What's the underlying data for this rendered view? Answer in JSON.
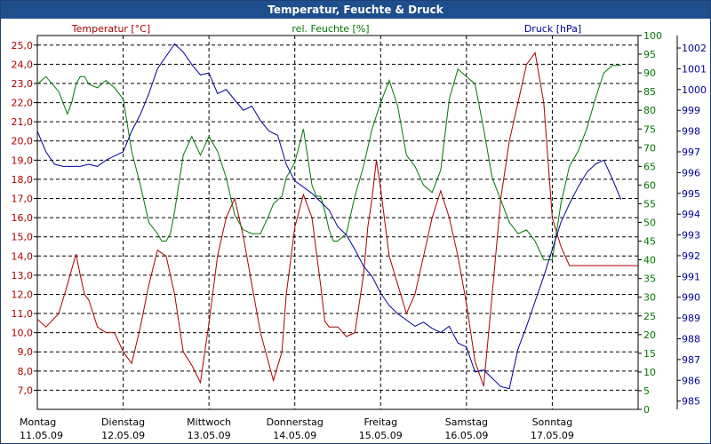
{
  "window": {
    "title": "Temperatur, Feuchte & Druck"
  },
  "chart_data": {
    "type": "line",
    "title": "Temperatur, Feuchte & Druck",
    "x_days": [
      {
        "day": "Montag",
        "date": "11.05.09"
      },
      {
        "day": "Dienstag",
        "date": "12.05.09"
      },
      {
        "day": "Mittwoch",
        "date": "13.05.09"
      },
      {
        "day": "Donnerstag",
        "date": "14.05.09"
      },
      {
        "day": "Freitag",
        "date": "15.05.09"
      },
      {
        "day": "Samstag",
        "date": "16.05.09"
      },
      {
        "day": "Sonntag",
        "date": "17.05.09"
      }
    ],
    "xlim": [
      0,
      7
    ],
    "grid": true,
    "axes": {
      "temperature": {
        "label": "Temperatur [°C]",
        "color": "#aa0000",
        "ylim": [
          6.0,
          25.5
        ],
        "ticks": [
          "25,0",
          "24,0",
          "23,0",
          "22,0",
          "21,0",
          "20,0",
          "19,0",
          "18,0",
          "17,0",
          "16,0",
          "15,0",
          "14,0",
          "13,0",
          "12,0",
          "11,0",
          "10,0",
          "9,0",
          "8,0",
          "7,0"
        ],
        "tick_values": [
          25,
          24,
          23,
          22,
          21,
          20,
          19,
          18,
          17,
          16,
          15,
          14,
          13,
          12,
          11,
          10,
          9,
          8,
          7
        ]
      },
      "humidity": {
        "label": "rel. Feuchte [%]",
        "color": "#007700",
        "ylim": [
          0,
          100
        ],
        "ticks": [
          "100",
          "95",
          "90",
          "85",
          "80",
          "75",
          "70",
          "65",
          "60",
          "55",
          "50",
          "45",
          "40",
          "35",
          "30",
          "25",
          "20",
          "15",
          "10",
          "5",
          "0"
        ],
        "tick_values": [
          100,
          95,
          90,
          85,
          80,
          75,
          70,
          65,
          60,
          55,
          50,
          45,
          40,
          35,
          30,
          25,
          20,
          15,
          10,
          5,
          0
        ]
      },
      "pressure": {
        "label": "Druck [hPa]",
        "color": "#000099",
        "ylim": [
          984.6,
          1002.6
        ],
        "ticks": [
          "1002",
          "1001",
          "1000",
          "999",
          "998",
          "997",
          "996",
          "995",
          "994",
          "993",
          "992",
          "991",
          "990",
          "989",
          "988",
          "987",
          "986",
          "985"
        ],
        "tick_values": [
          1002,
          1001,
          1000,
          999,
          998,
          997,
          996,
          995,
          994,
          993,
          992,
          991,
          990,
          989,
          988,
          987,
          986,
          985
        ]
      }
    },
    "series": [
      {
        "name": "Temperatur",
        "axis": "temperature",
        "color": "#aa0000",
        "x": [
          0,
          0.1,
          0.25,
          0.35,
          0.45,
          0.5,
          0.55,
          0.6,
          0.7,
          0.8,
          0.9,
          1.0,
          1.1,
          1.2,
          1.3,
          1.4,
          1.5,
          1.6,
          1.7,
          1.8,
          1.9,
          2.0,
          2.1,
          2.2,
          2.3,
          2.4,
          2.5,
          2.6,
          2.75,
          2.85,
          2.9,
          3.0,
          3.1,
          3.2,
          3.3,
          3.35,
          3.4,
          3.5,
          3.6,
          3.7,
          3.8,
          3.85,
          3.9,
          3.95,
          4.0,
          4.1,
          4.2,
          4.3,
          4.4,
          4.5,
          4.6,
          4.7,
          4.8,
          4.9,
          5.0,
          5.1,
          5.2,
          5.3,
          5.4,
          5.5,
          5.6,
          5.7,
          5.8,
          5.9,
          6.0,
          6.1,
          6.2,
          6.3,
          6.4,
          6.5,
          6.6,
          6.7,
          6.8,
          6.9,
          7.0
        ],
        "values": [
          10.7,
          10.3,
          11.0,
          12.5,
          14.1,
          13.0,
          12.0,
          11.7,
          10.3,
          10.0,
          10.0,
          9.0,
          8.4,
          10.3,
          12.5,
          14.3,
          14.0,
          12.0,
          9.0,
          8.3,
          7.4,
          10.5,
          14.0,
          16.0,
          17.0,
          15.0,
          12.5,
          10.0,
          7.5,
          9.0,
          12.0,
          15.5,
          17.2,
          16.0,
          12.5,
          10.6,
          10.3,
          10.3,
          9.8,
          10.0,
          13.0,
          15.5,
          17.0,
          19.0,
          17.5,
          14.0,
          12.5,
          11.0,
          12.0,
          14.0,
          16.0,
          17.4,
          16.0,
          14.0,
          11.5,
          8.5,
          7.2,
          12.0,
          17.0,
          20.0,
          22.0,
          24.0,
          24.6,
          22.0,
          16.0,
          14.5,
          13.5,
          13.5,
          13.5,
          13.5,
          13.5,
          13.5,
          13.5,
          13.5,
          13.5
        ]
      },
      {
        "name": "rel. Feuchte",
        "axis": "humidity",
        "color": "#007700",
        "x": [
          0,
          0.1,
          0.25,
          0.35,
          0.4,
          0.45,
          0.5,
          0.55,
          0.6,
          0.7,
          0.8,
          0.9,
          1.0,
          1.1,
          1.2,
          1.3,
          1.4,
          1.45,
          1.5,
          1.55,
          1.6,
          1.7,
          1.8,
          1.9,
          2.0,
          2.1,
          2.2,
          2.3,
          2.4,
          2.5,
          2.6,
          2.7,
          2.75,
          2.85,
          2.9,
          3.0,
          3.1,
          3.2,
          3.25,
          3.3,
          3.35,
          3.4,
          3.45,
          3.5,
          3.6,
          3.7,
          3.8,
          3.9,
          4.0,
          4.1,
          4.2,
          4.3,
          4.4,
          4.5,
          4.6,
          4.7,
          4.8,
          4.9,
          5.0,
          5.1,
          5.2,
          5.3,
          5.4,
          5.5,
          5.6,
          5.7,
          5.8,
          5.9,
          6.0,
          6.1,
          6.2,
          6.3,
          6.4,
          6.5,
          6.6,
          6.7,
          6.8
        ],
        "values": [
          87,
          89,
          85,
          79,
          82,
          87,
          89,
          89,
          87,
          86,
          88,
          86,
          83,
          69,
          60,
          50,
          47,
          45,
          45,
          47,
          53,
          68,
          73,
          68,
          73,
          69,
          62,
          52,
          48,
          47,
          47,
          52,
          55,
          57,
          62,
          66,
          75,
          60,
          57,
          57,
          53,
          48,
          45,
          45,
          47,
          57,
          65,
          75,
          82,
          88,
          81,
          68,
          65,
          60,
          58,
          64,
          83,
          91,
          89,
          87,
          75,
          62,
          56,
          50,
          47,
          48,
          45,
          40,
          40,
          55,
          65,
          69,
          75,
          83,
          90,
          92,
          92
        ]
      },
      {
        "name": "Druck",
        "axis": "pressure",
        "color": "#000099",
        "x": [
          0,
          0.1,
          0.2,
          0.3,
          0.4,
          0.5,
          0.6,
          0.7,
          0.8,
          0.9,
          1.0,
          1.1,
          1.2,
          1.3,
          1.4,
          1.5,
          1.6,
          1.7,
          1.8,
          1.9,
          2.0,
          2.1,
          2.2,
          2.3,
          2.4,
          2.5,
          2.6,
          2.7,
          2.8,
          2.9,
          3.0,
          3.1,
          3.2,
          3.3,
          3.4,
          3.5,
          3.6,
          3.7,
          3.8,
          3.9,
          4.0,
          4.1,
          4.2,
          4.3,
          4.4,
          4.5,
          4.6,
          4.7,
          4.8,
          4.9,
          5.0,
          5.1,
          5.2,
          5.3,
          5.4,
          5.5,
          5.6,
          5.7,
          5.8,
          5.9,
          6.0,
          6.1,
          6.2,
          6.3,
          6.4,
          6.5,
          6.6,
          6.7,
          6.8
        ],
        "values": [
          998.0,
          997.0,
          996.4,
          996.3,
          996.3,
          996.3,
          996.4,
          996.3,
          996.6,
          996.8,
          997.0,
          998.0,
          998.8,
          999.8,
          1001.0,
          1001.6,
          1002.2,
          1001.8,
          1001.2,
          1000.7,
          1000.8,
          999.8,
          1000.0,
          999.5,
          999.0,
          999.2,
          998.5,
          998.0,
          997.8,
          996.4,
          995.6,
          995.3,
          995.0,
          994.6,
          994.2,
          993.4,
          993.0,
          992.3,
          991.5,
          991.0,
          990.2,
          989.6,
          989.2,
          988.9,
          988.6,
          988.8,
          988.5,
          988.3,
          988.6,
          987.8,
          987.6,
          986.4,
          986.5,
          986.1,
          985.7,
          985.6,
          987.5,
          988.6,
          989.8,
          991.0,
          992.3,
          993.6,
          994.5,
          995.3,
          996.0,
          996.4,
          996.6,
          995.7,
          994.7
        ]
      }
    ]
  }
}
